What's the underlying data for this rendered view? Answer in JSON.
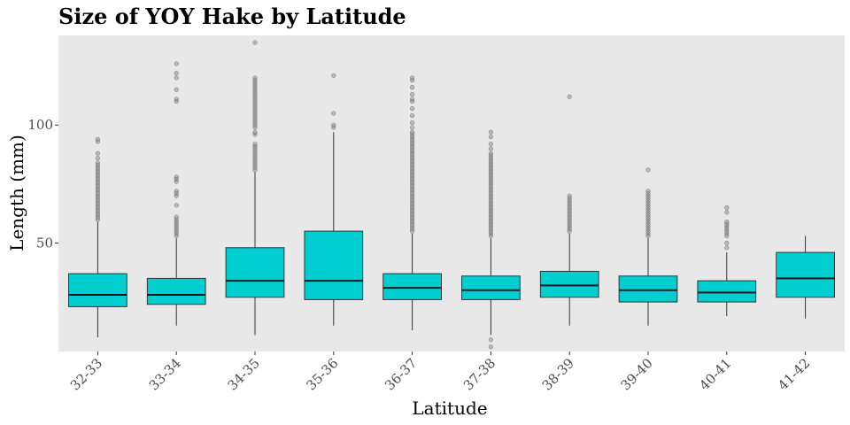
{
  "chart_data": {
    "type": "box",
    "title": "Size of YOY Hake by Latitude",
    "xlabel": "Latitude",
    "ylabel": "Length (mm)",
    "ylim": [
      4,
      138
    ],
    "y_ticks": [
      50,
      100
    ],
    "grid": false,
    "legend": "none",
    "box_color": "#00CED1",
    "background_color": "#E8E8E8",
    "outlier_color": "#808080",
    "categories": [
      "32-33",
      "33-34",
      "34-35",
      "35-36",
      "36-37",
      "37-38",
      "38-39",
      "39-40",
      "40-41",
      "41-42"
    ],
    "boxes": [
      {
        "category": "32-33",
        "min": 10,
        "q1": 23,
        "median": 28,
        "q3": 37,
        "max": 59,
        "outliers": [
          60,
          61,
          62,
          63,
          64,
          65,
          66,
          67,
          68,
          69,
          70,
          71,
          72,
          73,
          74,
          75,
          76,
          77,
          78,
          79,
          80,
          81,
          82,
          83,
          84,
          86,
          88,
          93,
          94
        ]
      },
      {
        "category": "33-34",
        "min": 15,
        "q1": 24,
        "median": 28,
        "q3": 35,
        "max": 52,
        "outliers": [
          53,
          54,
          55,
          56,
          57,
          58,
          59,
          60,
          61,
          66,
          70,
          71,
          72,
          76,
          77,
          78,
          110,
          111,
          115,
          120,
          122,
          126
        ]
      },
      {
        "category": "34-35",
        "min": 11,
        "q1": 27,
        "median": 34,
        "q3": 48,
        "max": 80,
        "outliers": [
          81,
          82,
          83,
          84,
          85,
          86,
          87,
          88,
          89,
          90,
          91,
          92,
          96,
          97,
          99,
          100,
          101,
          102,
          103,
          104,
          105,
          106,
          107,
          108,
          109,
          110,
          111,
          112,
          113,
          114,
          115,
          116,
          117,
          118,
          119,
          120,
          135
        ]
      },
      {
        "category": "35-36",
        "min": 15,
        "q1": 26,
        "median": 34,
        "q3": 55,
        "max": 97,
        "outliers": [
          99,
          100,
          105,
          121
        ]
      },
      {
        "category": "36-37",
        "min": 13,
        "q1": 26,
        "median": 31,
        "q3": 37,
        "max": 54,
        "outliers": [
          55,
          56,
          57,
          58,
          59,
          60,
          61,
          62,
          63,
          64,
          65,
          66,
          67,
          68,
          69,
          70,
          71,
          72,
          73,
          74,
          75,
          76,
          77,
          78,
          79,
          80,
          81,
          82,
          83,
          84,
          85,
          86,
          87,
          88,
          89,
          90,
          91,
          92,
          93,
          94,
          95,
          96,
          97,
          99,
          101,
          104,
          107,
          110,
          111,
          113,
          116,
          119,
          120
        ]
      },
      {
        "category": "37-38",
        "min": 11,
        "q1": 26,
        "median": 30,
        "q3": 36,
        "max": 52,
        "outliers": [
          6,
          9,
          53,
          54,
          55,
          56,
          57,
          58,
          59,
          60,
          61,
          62,
          63,
          64,
          65,
          66,
          67,
          68,
          69,
          70,
          71,
          72,
          73,
          74,
          75,
          76,
          77,
          78,
          79,
          80,
          81,
          82,
          83,
          84,
          85,
          86,
          87,
          88,
          90,
          92,
          95,
          97
        ]
      },
      {
        "category": "38-39",
        "min": 15,
        "q1": 27,
        "median": 32,
        "q3": 38,
        "max": 54,
        "outliers": [
          55,
          56,
          57,
          58,
          59,
          60,
          61,
          62,
          63,
          64,
          65,
          66,
          67,
          68,
          69,
          70,
          112
        ]
      },
      {
        "category": "39-40",
        "min": 15,
        "q1": 25,
        "median": 30,
        "q3": 36,
        "max": 52,
        "outliers": [
          53,
          54,
          55,
          56,
          57,
          58,
          59,
          60,
          61,
          62,
          63,
          64,
          65,
          66,
          67,
          68,
          69,
          70,
          71,
          72,
          81
        ]
      },
      {
        "category": "40-41",
        "min": 19,
        "q1": 25,
        "median": 29,
        "q3": 34,
        "max": 46,
        "outliers": [
          48,
          50,
          53,
          54,
          55,
          56,
          57,
          58,
          59,
          63,
          65
        ]
      },
      {
        "category": "41-42",
        "min": 18,
        "q1": 27,
        "median": 35,
        "q3": 46,
        "max": 53,
        "outliers": []
      }
    ]
  }
}
